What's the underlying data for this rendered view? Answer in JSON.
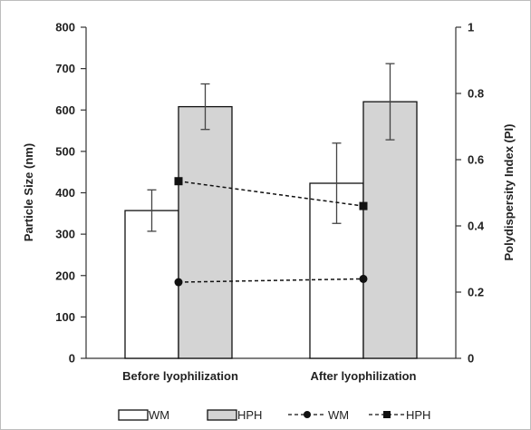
{
  "chart_data": {
    "type": "bar",
    "categories": [
      "Before lyophilization",
      "After lyophilization"
    ],
    "series": [
      {
        "name": "WM",
        "kind": "bar",
        "axis": "left",
        "values": [
          357,
          423
        ],
        "errors": [
          50,
          97
        ],
        "fill": "#ffffff"
      },
      {
        "name": "HPH",
        "kind": "bar",
        "axis": "left",
        "values": [
          608,
          620
        ],
        "errors": [
          55,
          92
        ],
        "fill": "#d4d4d4"
      },
      {
        "name": "WM",
        "kind": "line",
        "axis": "right",
        "marker": "circle",
        "values": [
          0.23,
          0.24
        ]
      },
      {
        "name": "HPH",
        "kind": "line",
        "axis": "right",
        "marker": "square",
        "values": [
          0.535,
          0.46
        ]
      }
    ],
    "ylabel": "Particle Size (nm)",
    "y2label": "Polydispersity Index (PI)",
    "ylim": [
      0,
      800
    ],
    "yticks": [
      "0",
      "100",
      "200",
      "300",
      "400",
      "500",
      "600",
      "700",
      "800"
    ],
    "y2lim": [
      0,
      1
    ],
    "y2ticks": [
      "0",
      "0.2",
      "0.4",
      "0.6",
      "0.8",
      "1"
    ],
    "grid": false,
    "legend_position": "bottom",
    "legend": [
      "WM",
      "HPH",
      "WM",
      "HPH"
    ]
  }
}
